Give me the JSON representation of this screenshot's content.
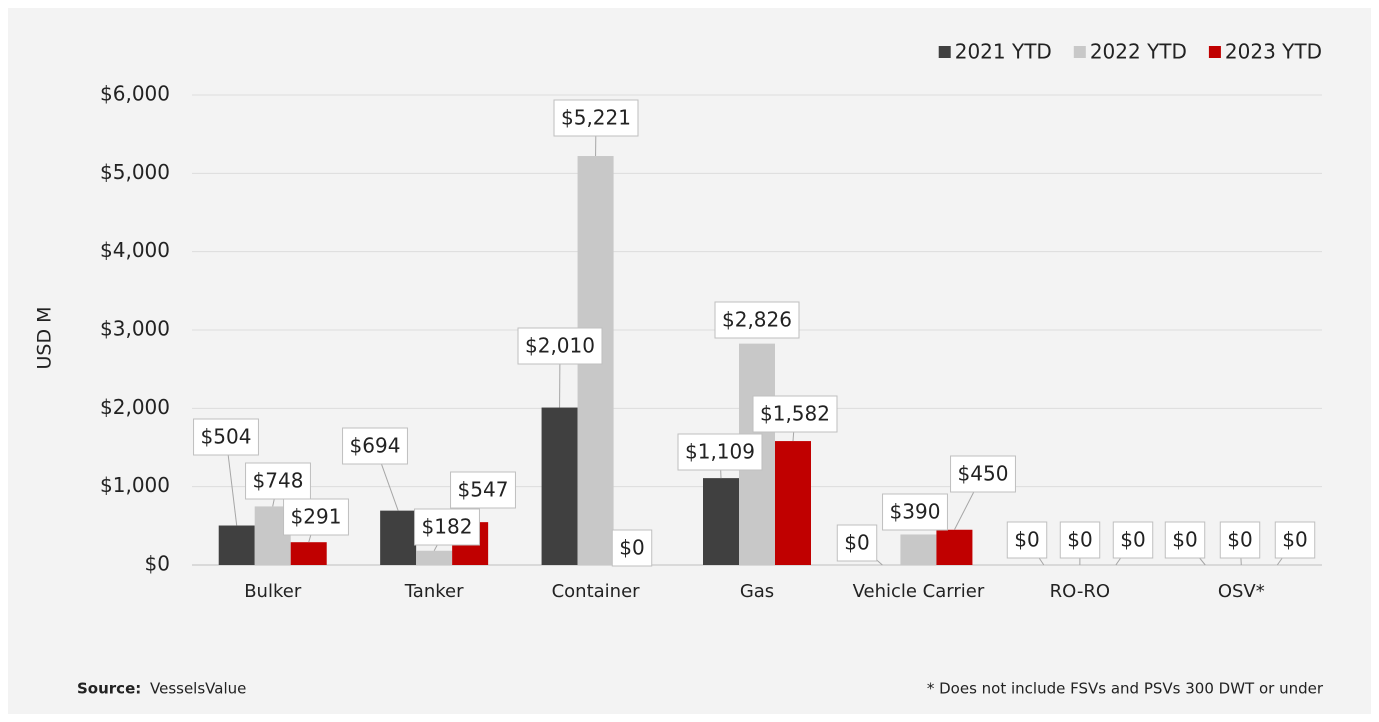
{
  "chart_data": {
    "type": "bar",
    "y_label": "USD M",
    "categories": [
      "Bulker",
      "Tanker",
      "Container",
      "Gas",
      "Vehicle Carrier",
      "RO-RO",
      "OSV*"
    ],
    "series": [
      {
        "name": "2021 YTD",
        "color": "#404040",
        "values": [
          504,
          694,
          2010,
          1109,
          0,
          0,
          0
        ],
        "value_labels": [
          "$504",
          "$694",
          "$2,010",
          "$1,109",
          "$0",
          "$0",
          "$0"
        ]
      },
      {
        "name": "2022 YTD",
        "color": "#c8c8c8",
        "values": [
          748,
          182,
          5221,
          2826,
          390,
          0,
          0
        ],
        "value_labels": [
          "$748",
          "$182",
          "$5,221",
          "$2,826",
          "$390",
          "$0",
          "$0"
        ]
      },
      {
        "name": "2023 YTD",
        "color": "#c00000",
        "values": [
          291,
          547,
          0,
          1582,
          450,
          0,
          0
        ],
        "value_labels": [
          "$291",
          "$547",
          "$0",
          "$1,582",
          "$450",
          "$0",
          "$0"
        ]
      }
    ],
    "ylim": [
      0,
      6000
    ],
    "yticks": [
      {
        "value": 0,
        "label": "$0"
      },
      {
        "value": 1000,
        "label": "$1,000"
      },
      {
        "value": 2000,
        "label": "$2,000"
      },
      {
        "value": 3000,
        "label": "$3,000"
      },
      {
        "value": 4000,
        "label": "$4,000"
      },
      {
        "value": 5000,
        "label": "$5,000"
      },
      {
        "value": 6000,
        "label": "$6,000"
      }
    ],
    "grid": true,
    "legend": "top-right",
    "source_label": "Source:",
    "source": "VesselsValue",
    "note": "* Does not include FSVs and PSVs 300 DWT or under"
  }
}
